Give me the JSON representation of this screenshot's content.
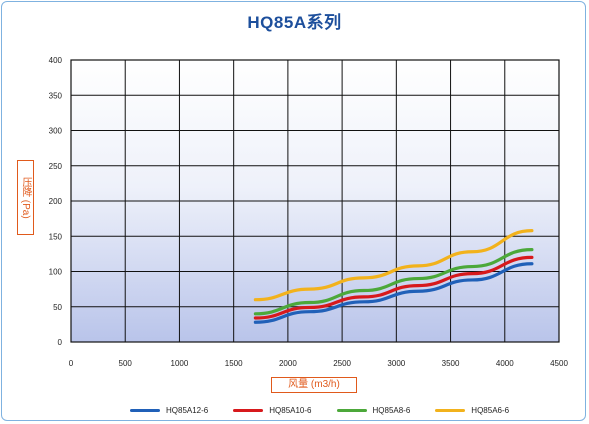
{
  "chart_data": {
    "type": "line",
    "title": "HQ85A系列",
    "xlabel": "风量 (m3/h)",
    "ylabel": "压降 (Pa)",
    "xlim": [
      0,
      4500
    ],
    "ylim": [
      0,
      400
    ],
    "x_ticks": [
      "0",
      "500",
      "1000",
      "1500",
      "2000",
      "2500",
      "3000",
      "3500",
      "4000",
      "4500"
    ],
    "y_ticks": [
      "0",
      "50",
      "100",
      "150",
      "200",
      "250",
      "300",
      "350",
      "400"
    ],
    "grid": true,
    "legend_position": "bottom",
    "series": [
      {
        "name": "HQ85A12-6",
        "color": "#2060b8",
        "x": [
          1700,
          2200,
          2700,
          3200,
          3700,
          4250
        ],
        "y": [
          28,
          43,
          57,
          72,
          88,
          111
        ]
      },
      {
        "name": "HQ85A10-6",
        "color": "#d7191c",
        "x": [
          1700,
          2200,
          2700,
          3200,
          3700,
          4250
        ],
        "y": [
          34,
          49,
          64,
          80,
          97,
          120
        ]
      },
      {
        "name": "HQ85A8-6",
        "color": "#4ca83a",
        "x": [
          1700,
          2200,
          2700,
          3200,
          3700,
          4250
        ],
        "y": [
          40,
          56,
          73,
          90,
          107,
          131
        ]
      },
      {
        "name": "HQ85A6-6",
        "color": "#f2b21c",
        "x": [
          1700,
          2200,
          2700,
          3200,
          3700,
          4250
        ],
        "y": [
          60,
          75,
          91,
          108,
          128,
          158
        ]
      }
    ]
  }
}
